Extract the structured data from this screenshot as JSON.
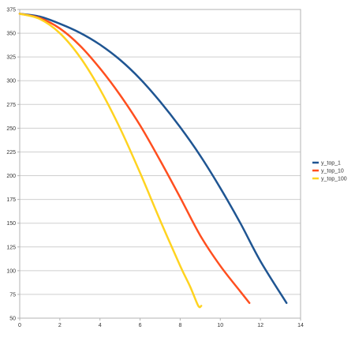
{
  "chart_data": {
    "type": "line",
    "title": "",
    "xlabel": "",
    "ylabel": "",
    "xlim": [
      0,
      14
    ],
    "ylim": [
      50,
      375
    ],
    "x_ticks": [
      0,
      2,
      4,
      6,
      8,
      10,
      12,
      14
    ],
    "y_ticks": [
      50,
      75,
      100,
      125,
      150,
      175,
      200,
      225,
      250,
      275,
      300,
      325,
      350,
      375
    ],
    "grid": "horizontal",
    "legend_position": "right",
    "series": [
      {
        "name": "y_top_1",
        "color": "#1f5592",
        "points": [
          [
            0,
            370.5
          ],
          [
            1,
            367.5
          ],
          [
            2,
            360
          ],
          [
            3,
            350.5
          ],
          [
            4,
            338
          ],
          [
            5,
            322
          ],
          [
            6,
            302
          ],
          [
            7,
            278
          ],
          [
            8,
            251
          ],
          [
            9,
            221
          ],
          [
            10,
            187
          ],
          [
            11,
            150
          ],
          [
            12,
            110
          ],
          [
            13.3,
            66
          ]
        ]
      },
      {
        "name": "y_top_10",
        "color": "#ff4f1f",
        "points": [
          [
            0,
            370.5
          ],
          [
            1,
            366
          ],
          [
            2,
            355
          ],
          [
            3,
            337
          ],
          [
            4,
            313
          ],
          [
            5,
            285
          ],
          [
            6,
            253
          ],
          [
            7,
            216
          ],
          [
            8,
            177
          ],
          [
            9,
            137
          ],
          [
            10,
            105
          ],
          [
            11,
            78
          ],
          [
            11.45,
            66
          ]
        ]
      },
      {
        "name": "y_top_100",
        "color": "#ffd320",
        "points": [
          [
            0,
            370.5
          ],
          [
            1,
            365
          ],
          [
            2,
            350
          ],
          [
            3,
            325
          ],
          [
            4,
            291
          ],
          [
            5,
            250
          ],
          [
            6,
            203
          ],
          [
            7,
            153
          ],
          [
            8,
            105
          ],
          [
            8.5,
            83
          ],
          [
            8.9,
            63
          ],
          [
            9.05,
            63
          ]
        ]
      }
    ]
  }
}
